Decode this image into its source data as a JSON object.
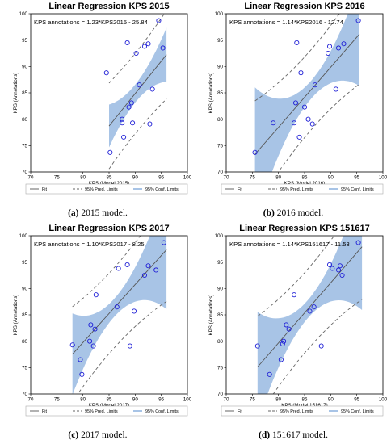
{
  "xlabels_common": [
    "70",
    "75",
    "80",
    "85",
    "90",
    "95",
    "100"
  ],
  "ylabels_common": [
    "70",
    "75",
    "80",
    "85",
    "90",
    "95",
    "100"
  ],
  "legend": {
    "fit": "Fit",
    "pred": "95% Pred. Limits",
    "conf": "95% Conf. Limits"
  },
  "colors": {
    "points": "#1f1fd6",
    "fit": "#555555",
    "band": "#a8c4e6",
    "pred": "#666666"
  },
  "chart_data": [
    {
      "type": "scatter",
      "title": "Linear Regression KPS 2015",
      "annotation": "KPS annotations = 1.23*KPS2015 - 25.84",
      "xlabel": "KPS (Model 2015)",
      "ylabel": "KPS (Annotations)",
      "xlim": [
        70,
        100
      ],
      "ylim": [
        70,
        100
      ],
      "caption_tag": "(a)",
      "caption_text": " 2015 model.",
      "fit": {
        "slope": 1.23,
        "intercept": -25.84,
        "x_range": [
          85,
          96
        ]
      },
      "points": [
        [
          84.5,
          88.8
        ],
        [
          85.2,
          73.7
        ],
        [
          87.5,
          79.3
        ],
        [
          87.5,
          80.0
        ],
        [
          87.8,
          76.6
        ],
        [
          88.5,
          94.5
        ],
        [
          88.8,
          82.3
        ],
        [
          89.3,
          83.1
        ],
        [
          89.5,
          79.3
        ],
        [
          90.2,
          92.5
        ],
        [
          90.8,
          86.5
        ],
        [
          91.8,
          93.8
        ],
        [
          92.5,
          94.3
        ],
        [
          92.8,
          79.1
        ],
        [
          93.3,
          85.7
        ],
        [
          94.5,
          98.7
        ],
        [
          95.3,
          93.5
        ]
      ]
    },
    {
      "type": "scatter",
      "title": "Linear Regression KPS 2016",
      "annotation": "KPS annotations = 1.14*KPS2016 - 12.74",
      "xlabel": "KPS (Model 2016)",
      "ylabel": "KPS (Annotations)",
      "xlim": [
        70,
        100
      ],
      "ylim": [
        70,
        100
      ],
      "caption_tag": "(b)",
      "caption_text": " 2016 model.",
      "fit": {
        "slope": 1.14,
        "intercept": -12.74,
        "x_range": [
          75.5,
          95.5
        ]
      },
      "points": [
        [
          75.5,
          73.7
        ],
        [
          79.0,
          79.3
        ],
        [
          83.0,
          79.3
        ],
        [
          83.3,
          83.1
        ],
        [
          83.5,
          94.5
        ],
        [
          84.0,
          76.6
        ],
        [
          84.3,
          88.8
        ],
        [
          85.0,
          82.3
        ],
        [
          85.7,
          80.0
        ],
        [
          86.5,
          79.1
        ],
        [
          87.0,
          86.5
        ],
        [
          89.5,
          92.5
        ],
        [
          89.8,
          93.8
        ],
        [
          91.0,
          85.7
        ],
        [
          91.5,
          93.5
        ],
        [
          92.5,
          94.3
        ],
        [
          95.3,
          98.7
        ]
      ]
    },
    {
      "type": "scatter",
      "title": "Linear Regression KPS 2017",
      "annotation": "KPS annotations = 1.10*KPS2017 - 8.25",
      "xlabel": "KPS (Model 2017)",
      "ylabel": "KPS (Annotations)",
      "xlim": [
        70,
        100
      ],
      "ylim": [
        70,
        100
      ],
      "caption_tag": "(c)",
      "caption_text": " 2017 model.",
      "fit": {
        "slope": 1.1,
        "intercept": -8.25,
        "x_range": [
          78,
          96
        ]
      },
      "points": [
        [
          78.0,
          79.3
        ],
        [
          79.5,
          76.5
        ],
        [
          79.8,
          73.7
        ],
        [
          81.3,
          80.0
        ],
        [
          81.5,
          83.1
        ],
        [
          82.0,
          79.1
        ],
        [
          82.3,
          82.3
        ],
        [
          82.5,
          88.8
        ],
        [
          86.5,
          86.5
        ],
        [
          86.8,
          93.8
        ],
        [
          88.5,
          94.5
        ],
        [
          89.0,
          79.1
        ],
        [
          89.8,
          85.7
        ],
        [
          91.8,
          92.5
        ],
        [
          92.5,
          94.3
        ],
        [
          94.0,
          93.5
        ],
        [
          95.5,
          98.7
        ]
      ]
    },
    {
      "type": "scatter",
      "title": "Linear Regression KPS 151617",
      "annotation": "KPS annotations = 1.14*KPS151617 - 11.53",
      "xlabel": "KPS (Model 151617)",
      "ylabel": "KPS (Annotations)",
      "xlim": [
        70,
        100
      ],
      "ylim": [
        70,
        100
      ],
      "caption_tag": "(d)",
      "caption_text": " 151617 model.",
      "fit": {
        "slope": 1.14,
        "intercept": -11.53,
        "x_range": [
          76,
          96
        ]
      },
      "points": [
        [
          76.0,
          79.1
        ],
        [
          78.3,
          73.7
        ],
        [
          80.5,
          76.5
        ],
        [
          80.8,
          79.5
        ],
        [
          81.0,
          80.0
        ],
        [
          81.5,
          83.1
        ],
        [
          82.0,
          82.3
        ],
        [
          83.0,
          88.8
        ],
        [
          86.0,
          85.7
        ],
        [
          86.8,
          86.5
        ],
        [
          88.2,
          79.1
        ],
        [
          89.8,
          94.5
        ],
        [
          90.3,
          93.8
        ],
        [
          91.5,
          93.5
        ],
        [
          91.8,
          94.3
        ],
        [
          92.2,
          92.5
        ],
        [
          95.3,
          98.7
        ]
      ]
    }
  ]
}
